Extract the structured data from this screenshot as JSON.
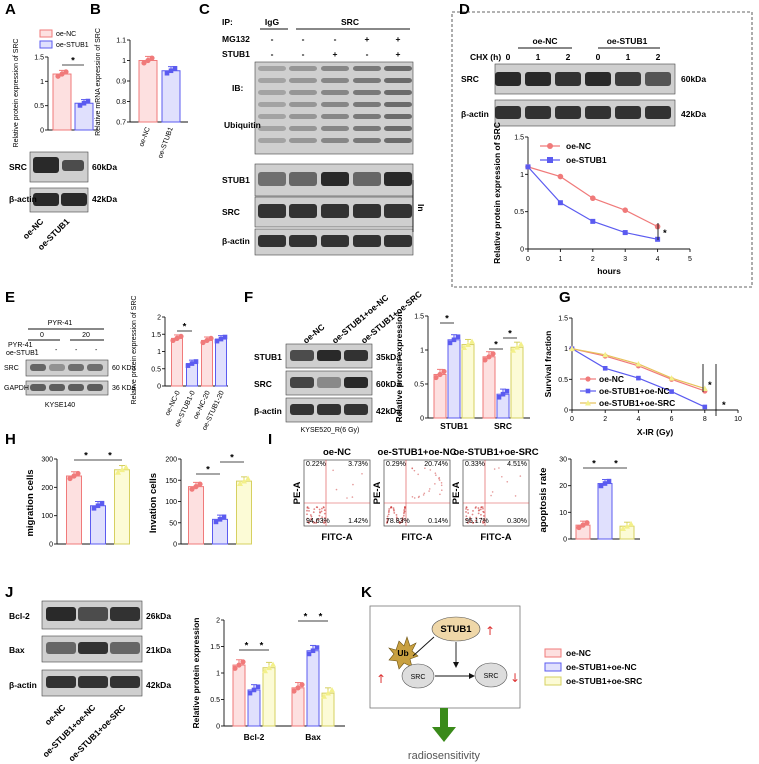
{
  "panel_letters": [
    "A",
    "B",
    "C",
    "D",
    "E",
    "F",
    "G",
    "H",
    "I",
    "J",
    "K"
  ],
  "colors": {
    "nc": "#f07a7a",
    "stub": "#5b5bf0",
    "src": "#f3f08a",
    "nc_fill": "#fde0e0",
    "stub_fill": "#e0e0fd",
    "src_fill": "#fcfbd6",
    "arrow_green": "#3a8a1a",
    "blot_dark": "#202020"
  },
  "A": {
    "legend": [
      "oe-NC",
      "oe-STUB1"
    ],
    "ylabel": "Relative protein expression of SRC",
    "sig": "*",
    "blot_labels": [
      "SRC",
      "β-actin"
    ],
    "blot_kda": [
      "60kDa",
      "42kDa"
    ],
    "lanes": [
      "oe-NC",
      "oe-STUB1"
    ]
  },
  "B": {
    "ylabel": "Relative mRNA expression of SRC",
    "lanes": [
      "oe-NC",
      "oe-STUB1"
    ]
  },
  "C": {
    "ip": "IP:",
    "ip_igg": "IgG",
    "ip_src": "SRC",
    "mg132": "MG132",
    "stub1": "STUB1",
    "mg132_signs": [
      "-",
      "-",
      "-",
      "+",
      "+"
    ],
    "stub1_signs": [
      "-",
      "-",
      "+",
      "-",
      "+"
    ],
    "ib": "IB:",
    "ubiquitin": "Ubiquitin",
    "rows": [
      "STUB1",
      "SRC",
      "β-actin"
    ],
    "input": "In"
  },
  "D": {
    "chx": "CHX  (h)",
    "groups": [
      "oe-NC",
      "oe-STUB1"
    ],
    "times": [
      "0",
      "1",
      "2",
      "0",
      "1",
      "2"
    ],
    "rows": [
      "SRC",
      "β-actin"
    ],
    "kda": [
      "60kDa",
      "42kDa"
    ],
    "legend": [
      "oe-NC",
      "oe-STUB1"
    ],
    "xlabel": "hours",
    "ylabel": "Relative protein expression of SRC",
    "sig": "*"
  },
  "E": {
    "pyr": "PYR-41",
    "pyr_dose": [
      "0",
      "20"
    ],
    "side_labels": [
      "PYR-41",
      "oe-STUB1"
    ],
    "rows": [
      "SRC",
      "GAPDH"
    ],
    "kda": [
      "60 KDa",
      "36 KDa"
    ],
    "cell": "KYSE140",
    "ylabel": "Relative protein expression of SRC",
    "lanes": [
      "oe-NC-0",
      "oe-STUB1-0",
      "oe-NC-20",
      "oe-STUB1-20"
    ],
    "sig": "*"
  },
  "F": {
    "lanes": [
      "oe-NC",
      "oe-STUB1+oe-NC",
      "oe-STUB1+oe-SRC"
    ],
    "rows": [
      "STUB1",
      "SRC",
      "β-actin"
    ],
    "kda": [
      "35kDa",
      "60kDa",
      "42kDa"
    ],
    "cell": "KYSE520_R(6 Gy)",
    "ylabel": "Relative protein expression",
    "groups": [
      "STUB1",
      "SRC"
    ],
    "sig": "*"
  },
  "G": {
    "ylabel": "Survival fraction",
    "xlabel": "X-IR (Gy)",
    "legend": [
      "oe-NC",
      "oe-STUB1+oe-NC",
      "oe-STUB1+oe-SRC"
    ],
    "sig": "*"
  },
  "H": {
    "ylabel1": "migration cells",
    "ylabel2": "Invation cells",
    "sig": "*"
  },
  "I": {
    "titles": [
      "oe-NC",
      "oe-STUB1+oe-NC",
      "oe-STUB1+oe-SRC"
    ],
    "xlabel": "FITC-A",
    "ylabel": "PE-A",
    "quadrants": [
      [
        "0.22%",
        "3.73%",
        "94.63%",
        "1.42%"
      ],
      [
        "0.29%",
        "20.74%",
        "78.83%",
        "0.14%"
      ],
      [
        "0.33%",
        "4.51%",
        "95.17%",
        "0.30%"
      ]
    ],
    "bar_ylabel": "apoptosis rate",
    "sig": "*"
  },
  "J": {
    "rows": [
      "Bcl-2",
      "Bax",
      "β-actin"
    ],
    "kda": [
      "26kDa",
      "21kDa",
      "42kDa"
    ],
    "lanes": [
      "oe-NC",
      "oe-STUB1+oe-NC",
      "oe-STUB1+oe-SRC"
    ],
    "ylabel": "Relative protein expression",
    "groups": [
      "Bcl-2",
      "Bax"
    ],
    "sig": "*"
  },
  "K": {
    "nodes": {
      "stub1": "STUB1",
      "ub": "Ub",
      "src1": "SRC",
      "src2": "SRC"
    },
    "outcome": "radiosensitivity",
    "legend": [
      "oe-NC",
      "oe-STUB1+oe-NC",
      "oe-STUB1+oe-SRC"
    ]
  },
  "chart_data": [
    {
      "panel": "A",
      "type": "bar",
      "categories": [
        "oe-NC",
        "oe-STUB1"
      ],
      "values": [
        1.15,
        0.55
      ],
      "ylim": [
        0,
        1.5
      ],
      "yticks": [
        0,
        0.5,
        1.0,
        1.5
      ]
    },
    {
      "panel": "B",
      "type": "bar",
      "categories": [
        "oe-NC",
        "oe-STUB1"
      ],
      "values": [
        1.0,
        0.95
      ],
      "ylim": [
        0.7,
        1.1
      ],
      "yticks": [
        0.7,
        0.8,
        0.9,
        1.0,
        1.1
      ]
    },
    {
      "panel": "D",
      "type": "line",
      "x": [
        0,
        1,
        2,
        3,
        4
      ],
      "series": [
        {
          "name": "oe-NC",
          "values": [
            1.1,
            0.97,
            0.68,
            0.52,
            0.3
          ]
        },
        {
          "name": "oe-STUB1",
          "values": [
            1.1,
            0.62,
            0.37,
            0.22,
            0.13
          ]
        }
      ],
      "xlim": [
        0,
        5
      ],
      "ylim": [
        0,
        1.5
      ],
      "xlabel": "hours",
      "ylabel": "Relative protein expression of SRC"
    },
    {
      "panel": "E",
      "type": "bar",
      "categories": [
        "oe-NC-0",
        "oe-STUB1-0",
        "oe-NC-20",
        "oe-STUB1-20"
      ],
      "values": [
        1.38,
        0.65,
        1.32,
        1.36
      ],
      "ylim": [
        0,
        2.0
      ],
      "yticks": [
        0,
        0.5,
        1.0,
        1.5,
        2.0
      ]
    },
    {
      "panel": "F",
      "type": "bar",
      "categories": [
        "STUB1",
        "SRC"
      ],
      "series": [
        {
          "name": "oe-NC",
          "values": [
            0.64,
            0.9
          ]
        },
        {
          "name": "oe-STUB1+oe-NC",
          "values": [
            1.15,
            0.35
          ]
        },
        {
          "name": "oe-STUB1+oe-SRC",
          "values": [
            1.08,
            1.04
          ]
        }
      ],
      "ylim": [
        0,
        1.5
      ],
      "yticks": [
        0,
        0.5,
        1.0,
        1.5
      ]
    },
    {
      "panel": "G",
      "type": "line",
      "x": [
        0,
        2,
        4,
        6,
        8
      ],
      "series": [
        {
          "name": "oe-NC",
          "values": [
            1.0,
            0.88,
            0.72,
            0.5,
            0.31
          ]
        },
        {
          "name": "oe-STUB1+oe-NC",
          "values": [
            1.0,
            0.68,
            0.52,
            0.3,
            0.05
          ]
        },
        {
          "name": "oe-STUB1+oe-SRC",
          "values": [
            1.0,
            0.9,
            0.75,
            0.52,
            0.35
          ]
        }
      ],
      "xlim": [
        0,
        10
      ],
      "ylim": [
        0,
        1.5
      ],
      "xlabel": "X-IR (Gy)",
      "ylabel": "Survival fraction"
    },
    {
      "panel": "H-migration",
      "type": "bar",
      "categories": [
        "oe-NC",
        "oe-STUB1+oe-NC",
        "oe-STUB1+oe-SRC"
      ],
      "values": [
        240,
        135,
        262
      ],
      "ylim": [
        0,
        300
      ],
      "yticks": [
        0,
        100,
        200,
        300
      ]
    },
    {
      "panel": "H-invation",
      "type": "bar",
      "categories": [
        "oe-NC",
        "oe-STUB1+oe-NC",
        "oe-STUB1+oe-SRC"
      ],
      "values": [
        135,
        58,
        148
      ],
      "ylim": [
        0,
        200
      ],
      "yticks": [
        0,
        50,
        100,
        150,
        200
      ]
    },
    {
      "panel": "I",
      "type": "bar",
      "categories": [
        "oe-NC",
        "oe-STUB1+oe-NC",
        "oe-STUB1+oe-SRC"
      ],
      "values": [
        5.2,
        20.8,
        4.8
      ],
      "ylim": [
        0,
        30
      ],
      "yticks": [
        0,
        10,
        20,
        30
      ]
    },
    {
      "panel": "J",
      "type": "bar",
      "categories": [
        "Bcl-2",
        "Bax"
      ],
      "series": [
        {
          "name": "oe-NC",
          "values": [
            1.15,
            0.72
          ]
        },
        {
          "name": "oe-STUB1+oe-NC",
          "values": [
            0.68,
            1.42
          ]
        },
        {
          "name": "oe-STUB1+oe-SRC",
          "values": [
            1.1,
            0.62
          ]
        }
      ],
      "ylim": [
        0,
        2.0
      ],
      "yticks": [
        0,
        0.5,
        1.0,
        1.5,
        2.0
      ]
    }
  ]
}
